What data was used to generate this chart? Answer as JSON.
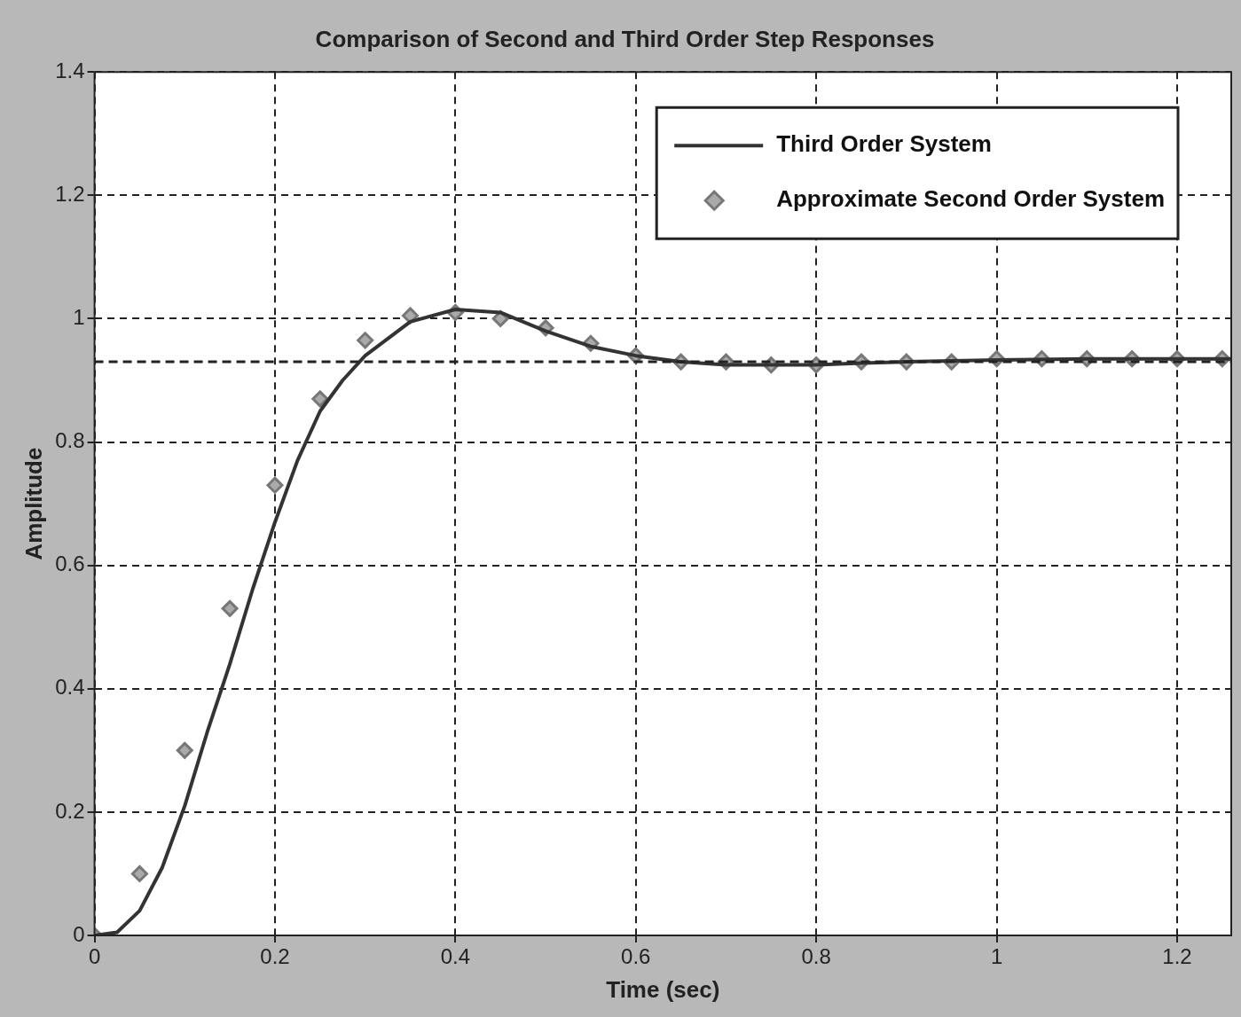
{
  "chart_data": {
    "type": "line",
    "title": "Comparison of Second and Third Order Step Responses",
    "xlabel": "Time (sec)",
    "ylabel": "Amplitude",
    "xlim": [
      0,
      1.26
    ],
    "ylim": [
      0,
      1.4
    ],
    "xticks": [
      0,
      0.2,
      0.4,
      0.6,
      0.8,
      1,
      1.2
    ],
    "yticks": [
      0,
      0.2,
      0.4,
      0.6,
      0.8,
      1,
      1.2,
      1.4
    ],
    "grid": true,
    "legend": "top right",
    "series": [
      {
        "name": "Third Order System",
        "type": "line",
        "color": "#333333",
        "marker": "none",
        "line_style": "solid",
        "x": [
          0,
          0.025,
          0.05,
          0.075,
          0.1,
          0.125,
          0.15,
          0.175,
          0.2,
          0.225,
          0.25,
          0.275,
          0.3,
          0.35,
          0.4,
          0.45,
          0.5,
          0.55,
          0.6,
          0.65,
          0.7,
          0.75,
          0.8,
          0.85,
          0.9,
          1,
          1.1,
          1.2,
          1.26
        ],
        "values": [
          0,
          0.005,
          0.04,
          0.11,
          0.21,
          0.33,
          0.44,
          0.56,
          0.67,
          0.77,
          0.85,
          0.9,
          0.94,
          0.995,
          1.015,
          1.01,
          0.98,
          0.955,
          0.94,
          0.93,
          0.925,
          0.925,
          0.925,
          0.928,
          0.93,
          0.933,
          0.935,
          0.935,
          0.935
        ]
      },
      {
        "name": "Approximate Second Order System",
        "type": "scatter",
        "color": "#777777",
        "marker": "diamond",
        "x": [
          0,
          0.05,
          0.1,
          0.15,
          0.2,
          0.25,
          0.3,
          0.35,
          0.4,
          0.45,
          0.5,
          0.55,
          0.6,
          0.65,
          0.7,
          0.75,
          0.8,
          0.85,
          0.9,
          0.95,
          1,
          1.05,
          1.1,
          1.15,
          1.2,
          1.25
        ],
        "values": [
          0,
          0.1,
          0.3,
          0.53,
          0.73,
          0.87,
          0.965,
          1.005,
          1.01,
          1,
          0.985,
          0.96,
          0.94,
          0.93,
          0.93,
          0.925,
          0.925,
          0.93,
          0.93,
          0.93,
          0.935,
          0.935,
          0.935,
          0.935,
          0.935,
          0.935
        ]
      }
    ],
    "ref_lines": [
      {
        "axis": "y",
        "value": 0.93,
        "color": "#222222",
        "line_style": "dashed"
      }
    ]
  }
}
